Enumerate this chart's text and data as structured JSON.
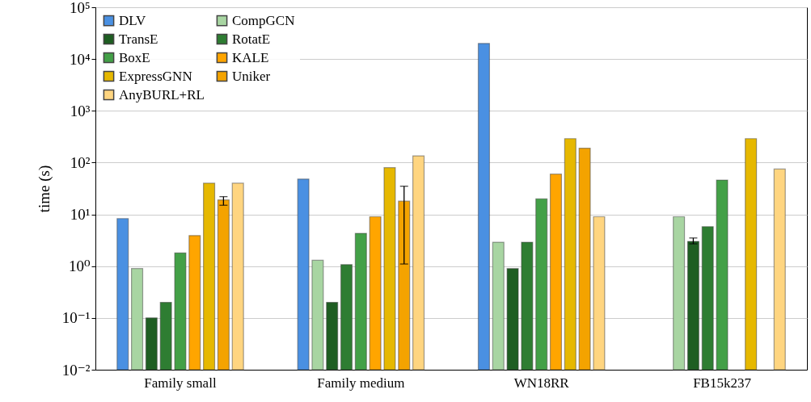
{
  "chart_data": {
    "type": "bar",
    "ylabel": "time (s)",
    "log": true,
    "grid": "y",
    "legend": "top left",
    "categories": [
      "Family small",
      "Family medium",
      "WN18RR",
      "FB15k237"
    ],
    "ylim": [
      0.01,
      100000
    ],
    "yticks": [
      {
        "value": 0.01,
        "label": "10⁻²"
      },
      {
        "value": 0.1,
        "label": "10⁻¹"
      },
      {
        "value": 1,
        "label": "10⁰"
      },
      {
        "value": 10,
        "label": "10¹"
      },
      {
        "value": 100,
        "label": "10²"
      },
      {
        "value": 1000,
        "label": "10³"
      },
      {
        "value": 10000,
        "label": "10⁴"
      },
      {
        "value": 100000,
        "label": "10⁵"
      }
    ],
    "series": [
      {
        "name": "DLV",
        "color": "#4a90e2",
        "values": [
          8.3,
          48,
          20000,
          null
        ]
      },
      {
        "name": "CompGCN",
        "color": "#a8d5a2",
        "values": [
          0.9,
          1.3,
          2.9,
          9
        ]
      },
      {
        "name": "TransE",
        "color": "#1e5e22",
        "values": [
          0.1,
          0.2,
          0.9,
          3.0
        ],
        "errors": [
          null,
          null,
          null,
          [
            2.7,
            3.5
          ]
        ]
      },
      {
        "name": "RotatE",
        "color": "#2e7d32",
        "values": [
          0.2,
          1.07,
          2.9,
          5.8
        ]
      },
      {
        "name": "BoxE",
        "color": "#43a047",
        "values": [
          1.8,
          4.3,
          20,
          46
        ]
      },
      {
        "name": "KALE",
        "color": "#ffa500",
        "values": [
          3.9,
          9,
          60,
          null
        ]
      },
      {
        "name": "ExpressGNN",
        "color": "#e6b800",
        "values": [
          40,
          80,
          290,
          290
        ]
      },
      {
        "name": "Uniker",
        "color": "#f4a300",
        "values": [
          19,
          18,
          190,
          null
        ],
        "errors": [
          [
            15,
            22
          ],
          [
            1.1,
            35
          ],
          null,
          null
        ]
      },
      {
        "name": "AnyBURL+RL",
        "color": "#ffd580",
        "values": [
          40,
          135,
          9,
          75
        ]
      }
    ]
  }
}
